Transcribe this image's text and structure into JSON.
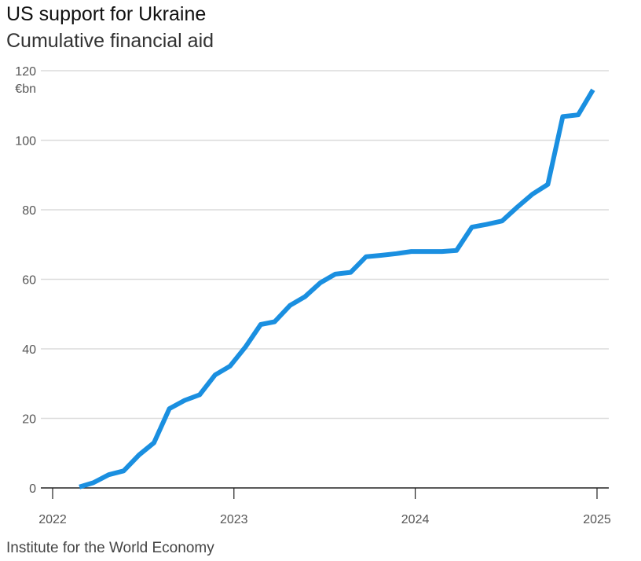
{
  "header": {
    "title": "US support for Ukraine",
    "subtitle": "Cumulative financial aid"
  },
  "footer": {
    "source": "Institute for the World Economy"
  },
  "colors": {
    "line": "#1a8fe0",
    "grid": "#dcdcdc",
    "axis": "#222222"
  },
  "chart_data": {
    "type": "line",
    "title": "US support for Ukraine",
    "subtitle": "Cumulative financial aid",
    "xlabel": "",
    "ylabel": "",
    "y_unit": "€bn",
    "xlim": [
      "2022-01-01",
      "2025-01-01"
    ],
    "ylim": [
      0,
      120
    ],
    "y_ticks": [
      0,
      20,
      40,
      60,
      80,
      100,
      120
    ],
    "x_ticks": [
      "2022",
      "2023",
      "2024",
      "2025"
    ],
    "grid": true,
    "legend": "none",
    "series": [
      {
        "x": [
          "2022-02-24",
          "2022-03-24",
          "2022-04-24",
          "2022-05-24",
          "2022-06-24",
          "2022-07-24",
          "2022-08-24",
          "2022-09-24",
          "2022-10-24",
          "2022-11-24",
          "2022-12-24",
          "2023-01-24",
          "2023-02-24",
          "2023-03-24",
          "2023-04-24",
          "2023-05-24",
          "2023-06-24",
          "2023-07-24",
          "2023-08-24",
          "2023-09-24",
          "2023-10-24",
          "2023-11-24",
          "2023-12-24",
          "2024-01-24",
          "2024-02-24",
          "2024-03-24",
          "2024-04-24",
          "2024-05-24",
          "2024-06-24",
          "2024-07-24",
          "2024-08-24",
          "2024-09-24",
          "2024-10-24",
          "2024-11-24",
          "2024-12-24"
        ],
        "values": [
          0.3,
          1.5,
          3.8,
          4.9,
          9.5,
          13.0,
          22.8,
          25.2,
          26.8,
          32.5,
          35.0,
          40.5,
          47.0,
          47.8,
          52.5,
          55.0,
          59.0,
          61.5,
          62.0,
          66.5,
          66.9,
          67.4,
          68.0,
          68.0,
          68.0,
          68.3,
          75.0,
          75.8,
          76.8,
          80.7,
          84.5,
          87.3,
          106.8,
          107.3,
          114.5
        ]
      }
    ]
  }
}
